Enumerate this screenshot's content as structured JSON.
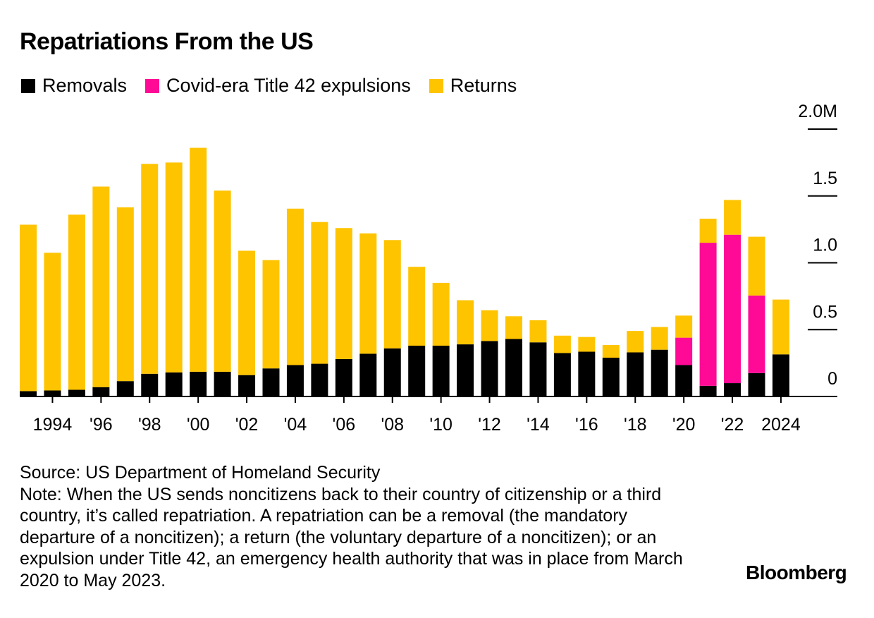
{
  "title": "Repatriations From the US",
  "legend": [
    {
      "label": "Removals",
      "color": "#000000"
    },
    {
      "label": "Covid-era Title 42 expulsions",
      "color": "#ff0a96"
    },
    {
      "label": "Returns",
      "color": "#ffc400"
    }
  ],
  "chart_data": {
    "type": "bar",
    "stacked": true,
    "title": "Repatriations From the US",
    "unit": "millions",
    "categories": [
      "1993",
      "1994",
      "1995",
      "1996",
      "1997",
      "1998",
      "1999",
      "2000",
      "2001",
      "2002",
      "2003",
      "2004",
      "2005",
      "2006",
      "2007",
      "2008",
      "2009",
      "2010",
      "2011",
      "2012",
      "2013",
      "2014",
      "2015",
      "2016",
      "2017",
      "2018",
      "2019",
      "2020",
      "2021",
      "2022",
      "2023",
      "2024"
    ],
    "x_tick_labels": [
      "",
      "1994",
      "",
      "'96",
      "",
      "'98",
      "",
      "'00",
      "",
      "'02",
      "",
      "'04",
      "",
      "'06",
      "",
      "'08",
      "",
      "'10",
      "",
      "'12",
      "",
      "'14",
      "",
      "'16",
      "",
      "'18",
      "",
      "'20",
      "",
      "'22",
      "",
      "2024"
    ],
    "series": [
      {
        "name": "Removals",
        "color": "#000000",
        "values": [
          0.04,
          0.045,
          0.05,
          0.07,
          0.115,
          0.17,
          0.18,
          0.185,
          0.185,
          0.16,
          0.21,
          0.235,
          0.245,
          0.28,
          0.32,
          0.36,
          0.38,
          0.38,
          0.39,
          0.415,
          0.43,
          0.405,
          0.325,
          0.335,
          0.29,
          0.33,
          0.35,
          0.235,
          0.08,
          0.1,
          0.175,
          0.315
        ]
      },
      {
        "name": "Covid-era Title 42 expulsions",
        "color": "#ff0a96",
        "values": [
          0,
          0,
          0,
          0,
          0,
          0,
          0,
          0,
          0,
          0,
          0,
          0,
          0,
          0,
          0,
          0,
          0,
          0,
          0,
          0,
          0,
          0,
          0,
          0,
          0,
          0,
          0,
          0.205,
          1.07,
          1.11,
          0.58,
          0
        ]
      },
      {
        "name": "Returns",
        "color": "#ffc400",
        "values": [
          1.245,
          1.03,
          1.31,
          1.5,
          1.3,
          1.57,
          1.57,
          1.675,
          1.355,
          0.93,
          0.81,
          1.17,
          1.06,
          0.98,
          0.9,
          0.81,
          0.59,
          0.47,
          0.33,
          0.23,
          0.17,
          0.165,
          0.13,
          0.11,
          0.095,
          0.16,
          0.17,
          0.165,
          0.18,
          0.26,
          0.44,
          0.41
        ]
      }
    ],
    "y_ticks": [
      {
        "value": 0,
        "label": "0"
      },
      {
        "value": 0.5,
        "label": "0.5"
      },
      {
        "value": 1.0,
        "label": "1.0"
      },
      {
        "value": 1.5,
        "label": "1.5"
      },
      {
        "value": 2.0,
        "label": "2.0M"
      }
    ],
    "ylim": [
      0,
      2.0
    ],
    "xlabel": "",
    "ylabel": ""
  },
  "footer": {
    "source": "Source: US Department of Homeland Security",
    "note": "Note: When the US sends noncitizens back to their country of citizenship or a third country, it’s called repatriation. A repatriation can be a removal (the mandatory departure of a noncitizen); a return (the voluntary departure of a noncitizen); or an expulsion under Title 42, an emergency health authority that was in place from March 2020 to May 2023."
  },
  "brand": "Bloomberg"
}
